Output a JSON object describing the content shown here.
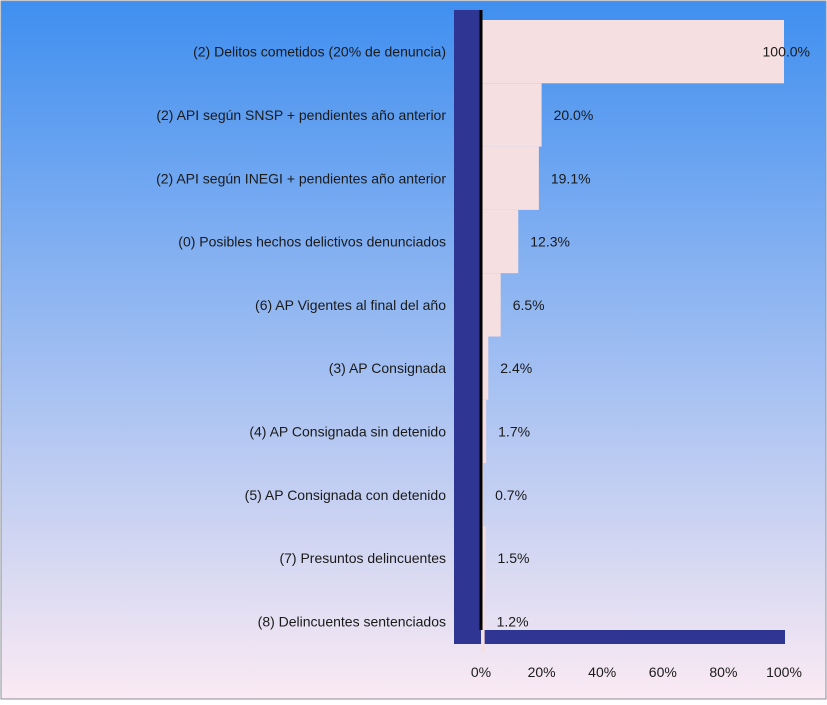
{
  "chart_data": {
    "type": "bar",
    "orientation": "horizontal",
    "title": "",
    "xlabel": "",
    "ylabel": "",
    "xlim": [
      0,
      100
    ],
    "grid": false,
    "legend": "none",
    "categories": [
      "(2) Delitos cometidos (20% de denuncia)",
      "(2) API según SNSP + pendientes año anterior",
      "(2) API según INEGI + pendientes año anterior",
      "(0) Posibles hechos delictivos denunciados",
      "(6) AP Vigentes al final del año",
      "(3) AP Consignada",
      "(4) AP Consignada sin detenido",
      "(5) AP Consignada con detenido",
      "(7) Presuntos delincuentes",
      "(8) Delincuentes sentenciados"
    ],
    "values": [
      100.0,
      20.0,
      19.1,
      12.3,
      6.5,
      2.4,
      1.7,
      0.7,
      1.5,
      1.2
    ],
    "value_labels": [
      "100.0%",
      "20.0%",
      "19.1%",
      "12.3%",
      "6.5%",
      "2.4%",
      "1.7%",
      "0.7%",
      "1.5%",
      "1.2%"
    ],
    "x_ticks": [
      "0%",
      "20%",
      "40%",
      "60%",
      "80%",
      "100%"
    ],
    "colors": {
      "bar": "#f6dfe0",
      "axis_panel": "#2e3592",
      "axis_line": "#000000",
      "background_top": "#3f8ff0",
      "background_bottom": "#fbeaf3"
    }
  }
}
